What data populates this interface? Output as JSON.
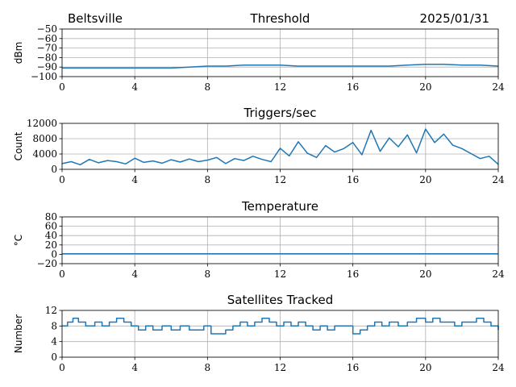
{
  "header": {
    "station": "Beltsville",
    "date": "2025/01/31"
  },
  "colors": {
    "line": "#1f77b4",
    "grid": "#b0b0b0"
  },
  "chart_data": [
    {
      "type": "line",
      "title": "Threshold",
      "ylabel": "dBm",
      "xlim": [
        0,
        24
      ],
      "ylim": [
        -100,
        -50
      ],
      "xticks": [
        0,
        4,
        8,
        12,
        16,
        20,
        24
      ],
      "yticks": [
        -100,
        -90,
        -80,
        -70,
        -60,
        -50
      ],
      "xtick_labels": [
        "0",
        "4",
        "8",
        "12",
        "16",
        "20",
        "24"
      ],
      "ytick_labels": [
        "−100",
        "−90",
        "−80",
        "−70",
        "−60",
        "−50"
      ],
      "grid": true,
      "series": [
        {
          "x": [
            0,
            1,
            2,
            3,
            4,
            5,
            6,
            7,
            8,
            9,
            10,
            11,
            12,
            13,
            14,
            15,
            16,
            17,
            18,
            19,
            20,
            21,
            22,
            23,
            24
          ],
          "y": [
            -91,
            -91,
            -91,
            -91,
            -91,
            -91,
            -91,
            -90,
            -89,
            -89,
            -88,
            -88,
            -88,
            -89,
            -89,
            -89,
            -89,
            -89,
            -89,
            -88,
            -87,
            -87,
            -88,
            -88,
            -89
          ]
        }
      ]
    },
    {
      "type": "line",
      "title": "Triggers/sec",
      "ylabel": "Count",
      "xlim": [
        0,
        24
      ],
      "ylim": [
        0,
        12000
      ],
      "xticks": [
        0,
        4,
        8,
        12,
        16,
        20,
        24
      ],
      "yticks": [
        0,
        4000,
        8000,
        12000
      ],
      "xtick_labels": [
        "0",
        "4",
        "8",
        "12",
        "16",
        "20",
        "24"
      ],
      "ytick_labels": [
        "0",
        "4000",
        "8000",
        "12000"
      ],
      "grid": true,
      "series": [
        {
          "x": [
            0,
            0.5,
            1,
            1.5,
            2,
            2.5,
            3,
            3.5,
            4,
            4.5,
            5,
            5.5,
            6,
            6.5,
            7,
            7.5,
            8,
            8.5,
            9,
            9.5,
            10,
            10.5,
            11,
            11.5,
            12,
            12.5,
            13,
            13.5,
            14,
            14.5,
            15,
            15.5,
            16,
            16.5,
            17,
            17.5,
            18,
            18.5,
            19,
            19.5,
            20,
            20.5,
            21,
            21.5,
            22,
            22.5,
            23,
            23.5,
            24
          ],
          "y": [
            1500,
            2000,
            1200,
            2600,
            1700,
            2300,
            2000,
            1400,
            2900,
            1800,
            2200,
            1600,
            2500,
            1900,
            2700,
            2000,
            2400,
            3100,
            1500,
            2800,
            2300,
            3400,
            2600,
            2000,
            5500,
            3500,
            7200,
            4200,
            3100,
            6200,
            4500,
            5400,
            7000,
            3800,
            10200,
            4700,
            8200,
            5900,
            9000,
            4300,
            10500,
            7000,
            9200,
            6300,
            5400,
            4100,
            2800,
            3400,
            1300
          ]
        }
      ]
    },
    {
      "type": "line",
      "title": "Temperature",
      "ylabel": "°C",
      "xlim": [
        0,
        24
      ],
      "ylim": [
        -20,
        80
      ],
      "xticks": [
        0,
        4,
        8,
        12,
        16,
        20,
        24
      ],
      "yticks": [
        -20,
        0,
        20,
        40,
        60,
        80
      ],
      "xtick_labels": [
        "0",
        "4",
        "8",
        "12",
        "16",
        "20",
        "24"
      ],
      "ytick_labels": [
        "−20",
        "0",
        "20",
        "40",
        "60",
        "80"
      ],
      "grid": true,
      "series": [
        {
          "x": [
            0,
            24
          ],
          "y": [
            1,
            1
          ]
        }
      ]
    },
    {
      "type": "line",
      "title": "Satellites Tracked",
      "ylabel": "Number",
      "xlim": [
        0,
        24
      ],
      "ylim": [
        0,
        12
      ],
      "xticks": [
        0,
        4,
        8,
        12,
        16,
        20,
        24
      ],
      "yticks": [
        0,
        4,
        8,
        12
      ],
      "xtick_labels": [
        "0",
        "4",
        "8",
        "12",
        "16",
        "20",
        "24"
      ],
      "ytick_labels": [
        "0",
        "4",
        "8",
        "12"
      ],
      "grid": true,
      "series": [
        {
          "step": true,
          "x": [
            0,
            0.3,
            0.6,
            0.9,
            1.3,
            1.8,
            2.2,
            2.6,
            3.0,
            3.4,
            3.8,
            4.2,
            4.6,
            5.0,
            5.5,
            6.0,
            6.5,
            7.0,
            7.4,
            7.8,
            8.2,
            8.6,
            9.0,
            9.4,
            9.8,
            10.2,
            10.6,
            11.0,
            11.4,
            11.8,
            12.2,
            12.6,
            13.0,
            13.4,
            13.8,
            14.2,
            14.6,
            15.0,
            15.5,
            16.0,
            16.4,
            16.8,
            17.2,
            17.6,
            18.0,
            18.5,
            19.0,
            19.5,
            20.0,
            20.4,
            20.8,
            21.2,
            21.6,
            22.0,
            22.4,
            22.8,
            23.2,
            23.6,
            24
          ],
          "y": [
            8,
            9,
            10,
            9,
            8,
            9,
            8,
            9,
            10,
            9,
            8,
            7,
            8,
            7,
            8,
            7,
            8,
            7,
            7,
            8,
            6,
            6,
            7,
            8,
            9,
            8,
            9,
            10,
            9,
            8,
            9,
            8,
            9,
            8,
            7,
            8,
            7,
            8,
            8,
            6,
            7,
            8,
            9,
            8,
            9,
            8,
            9,
            10,
            9,
            10,
            9,
            9,
            8,
            9,
            9,
            10,
            9,
            8,
            7
          ]
        }
      ]
    }
  ]
}
